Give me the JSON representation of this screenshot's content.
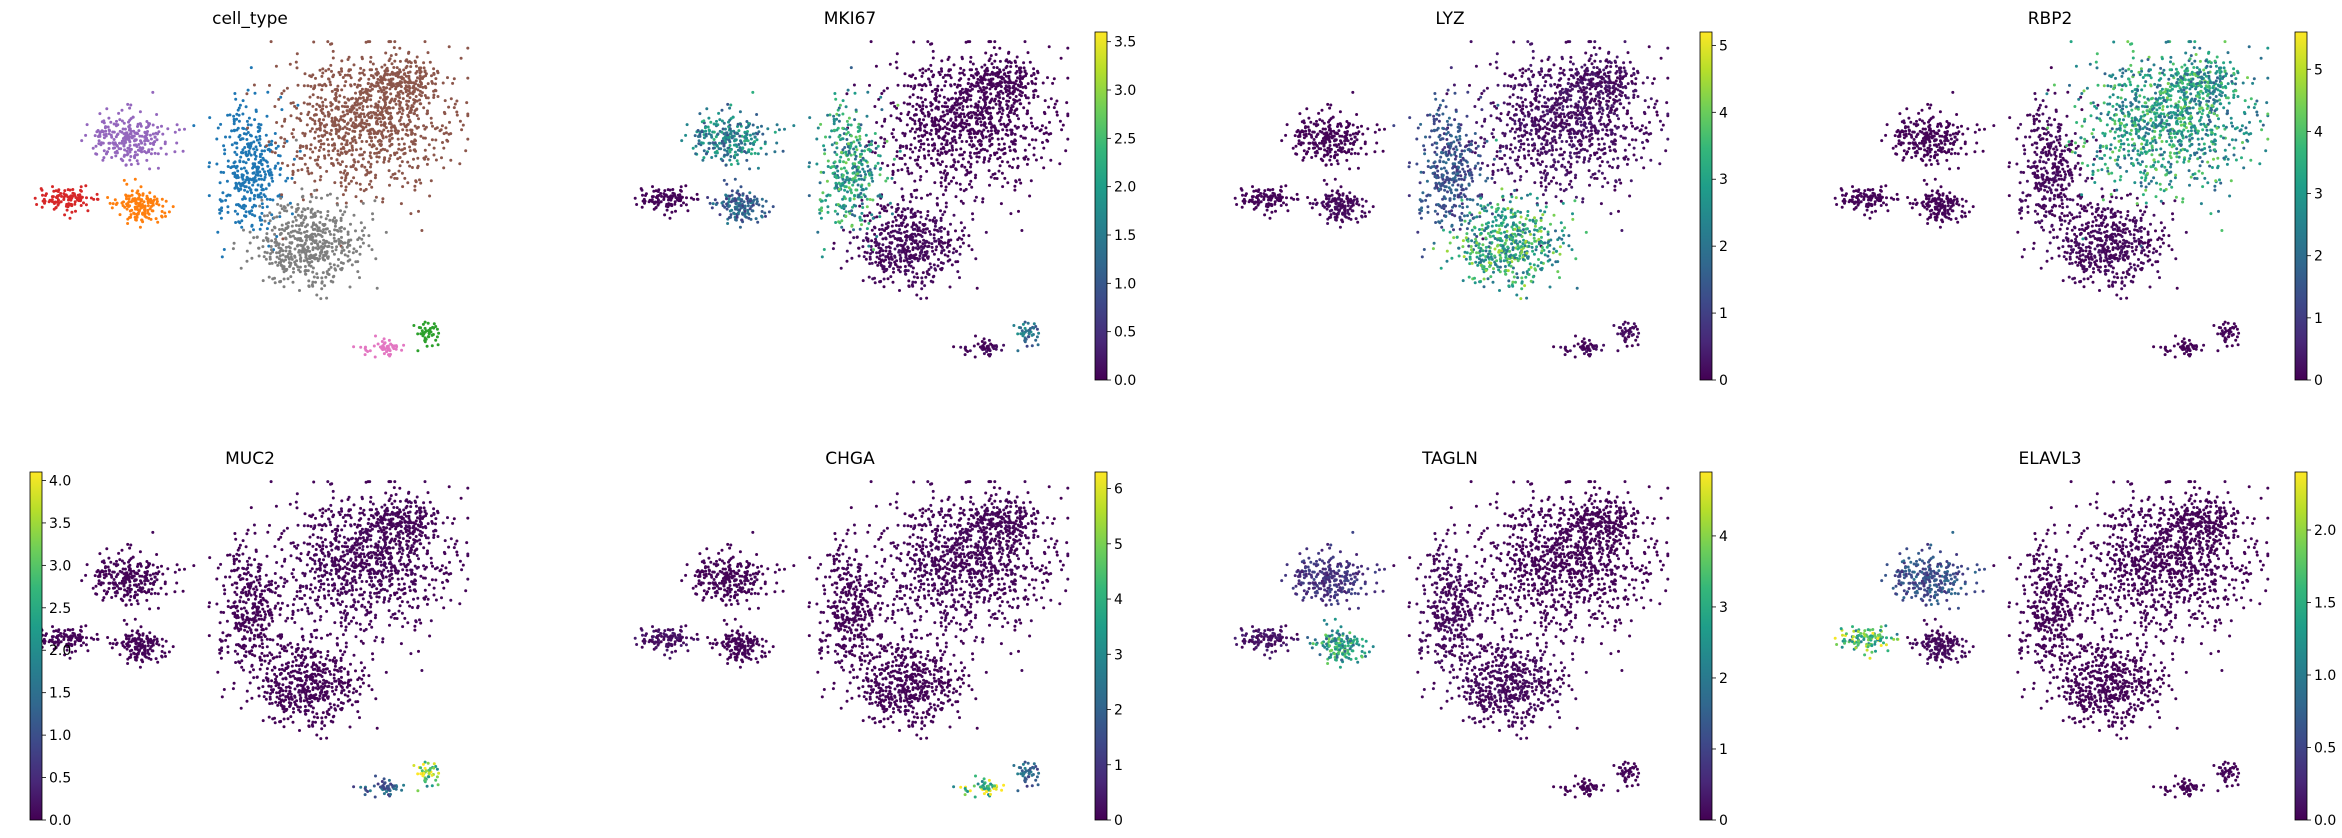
{
  "chart_data": {
    "type": "scatter",
    "description_kind": "umap-embedding-grid",
    "grid": false,
    "viridis": [
      "#440154",
      "#482878",
      "#3e4989",
      "#31688e",
      "#26828e",
      "#1f9e89",
      "#35b779",
      "#6ece58",
      "#b5de2b",
      "#fde725"
    ],
    "clusters": [
      {
        "id": "c1",
        "color": "#d62728",
        "level": 0
      },
      {
        "id": "c2",
        "color": "#9467bd",
        "level": 0
      },
      {
        "id": "c3",
        "color": "#ff7f0e",
        "level": 0
      },
      {
        "id": "c4",
        "color": "#1f77b4",
        "level": 0
      },
      {
        "id": "c5",
        "color": "#8c564b",
        "level": 0
      },
      {
        "id": "c6",
        "color": "#7f7f7f",
        "level": 0
      },
      {
        "id": "c7",
        "color": "#e377c2",
        "level": 0
      },
      {
        "id": "c8",
        "color": "#2ca02c",
        "level": 0
      }
    ],
    "panels": [
      {
        "title": "cell_type",
        "kind": "categorical",
        "legend": "none"
      },
      {
        "title": "MKI67",
        "kind": "continuous",
        "vmin": 0,
        "vmax": 3.6,
        "ticks": [
          "0.0",
          "0.5",
          "1.0",
          "1.5",
          "2.0",
          "2.5",
          "3.0",
          "3.5"
        ],
        "cluster_levels": {
          "c1": 0.02,
          "c2": 0.45,
          "c3": 0.3,
          "c4": 0.55,
          "c5": 0.02,
          "c6": 0.05,
          "c7": 0.05,
          "c8": 0.35
        }
      },
      {
        "title": "LYZ",
        "kind": "continuous",
        "vmin": 0,
        "vmax": 5.2,
        "ticks": [
          "0",
          "1",
          "2",
          "3",
          "4",
          "5"
        ],
        "cluster_levels": {
          "c1": 0.02,
          "c2": 0.02,
          "c3": 0.05,
          "c4": 0.25,
          "c5": 0.08,
          "c6": 0.6,
          "c7": 0.05,
          "c8": 0.05
        }
      },
      {
        "title": "RBP2",
        "kind": "continuous",
        "vmin": 0,
        "vmax": 5.6,
        "ticks": [
          "0",
          "1",
          "2",
          "3",
          "4",
          "5"
        ],
        "cluster_levels": {
          "c1": 0.02,
          "c2": 0.02,
          "c3": 0.02,
          "c4": 0.05,
          "c5": 0.55,
          "c6": 0.05,
          "c7": 0.02,
          "c8": 0.02
        }
      },
      {
        "title": "MUC2",
        "kind": "continuous",
        "vmin": 0,
        "vmax": 4.1,
        "ticks": [
          "0.0",
          "0.5",
          "1.0",
          "1.5",
          "2.0",
          "2.5",
          "3.0",
          "3.5",
          "4.0"
        ],
        "cluster_levels": {
          "c1": 0.02,
          "c2": 0.02,
          "c3": 0.02,
          "c4": 0.02,
          "c5": 0.03,
          "c6": 0.02,
          "c7": 0.3,
          "c8": 0.75
        }
      },
      {
        "title": "CHGA",
        "kind": "continuous",
        "vmin": 0,
        "vmax": 6.3,
        "ticks": [
          "0",
          "1",
          "2",
          "3",
          "4",
          "5",
          "6"
        ],
        "cluster_levels": {
          "c1": 0.08,
          "c2": 0.02,
          "c3": 0.02,
          "c4": 0.02,
          "c5": 0.03,
          "c6": 0.02,
          "c7": 0.8,
          "c8": 0.3
        }
      },
      {
        "title": "TAGLN",
        "kind": "continuous",
        "vmin": 0,
        "vmax": 4.9,
        "ticks": [
          "0",
          "1",
          "2",
          "3",
          "4"
        ],
        "cluster_levels": {
          "c1": 0.1,
          "c2": 0.15,
          "c3": 0.55,
          "c4": 0.05,
          "c5": 0.02,
          "c6": 0.05,
          "c7": 0.02,
          "c8": 0.02
        }
      },
      {
        "title": "ELAVL3",
        "kind": "continuous",
        "vmin": 0,
        "vmax": 2.4,
        "ticks": [
          "0.0",
          "0.5",
          "1.0",
          "1.5",
          "2.0"
        ],
        "cluster_levels": {
          "c1": 0.7,
          "c2": 0.25,
          "c3": 0.05,
          "c4": 0.02,
          "c5": 0.02,
          "c6": 0.02,
          "c7": 0.02,
          "c8": 0.02
        }
      }
    ]
  }
}
